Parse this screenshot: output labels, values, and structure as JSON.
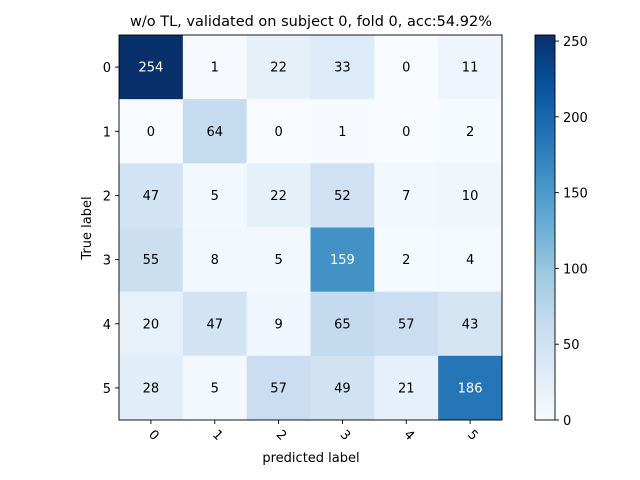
{
  "chart_data": {
    "type": "heatmap",
    "title": "w/o TL, validated on subject 0, fold 0, acc:54.92%",
    "xlabel": "predicted label",
    "ylabel": "True label",
    "x_categories": [
      "0",
      "1",
      "2",
      "3",
      "4",
      "5"
    ],
    "y_categories": [
      "0",
      "1",
      "2",
      "3",
      "4",
      "5"
    ],
    "matrix": [
      [
        254,
        1,
        22,
        33,
        0,
        11
      ],
      [
        0,
        64,
        0,
        1,
        0,
        2
      ],
      [
        47,
        5,
        22,
        52,
        7,
        10
      ],
      [
        55,
        8,
        5,
        159,
        2,
        4
      ],
      [
        20,
        47,
        9,
        65,
        57,
        43
      ],
      [
        28,
        5,
        57,
        49,
        21,
        186
      ]
    ],
    "colormap": "Blues",
    "value_range": [
      0,
      254
    ],
    "colorbar_ticks": [
      0,
      50,
      100,
      150,
      200,
      250
    ],
    "colorbar_tick_labels": [
      "0",
      "50",
      "100",
      "150",
      "200",
      "250"
    ],
    "x_tick_rotation": "45 degrees"
  }
}
